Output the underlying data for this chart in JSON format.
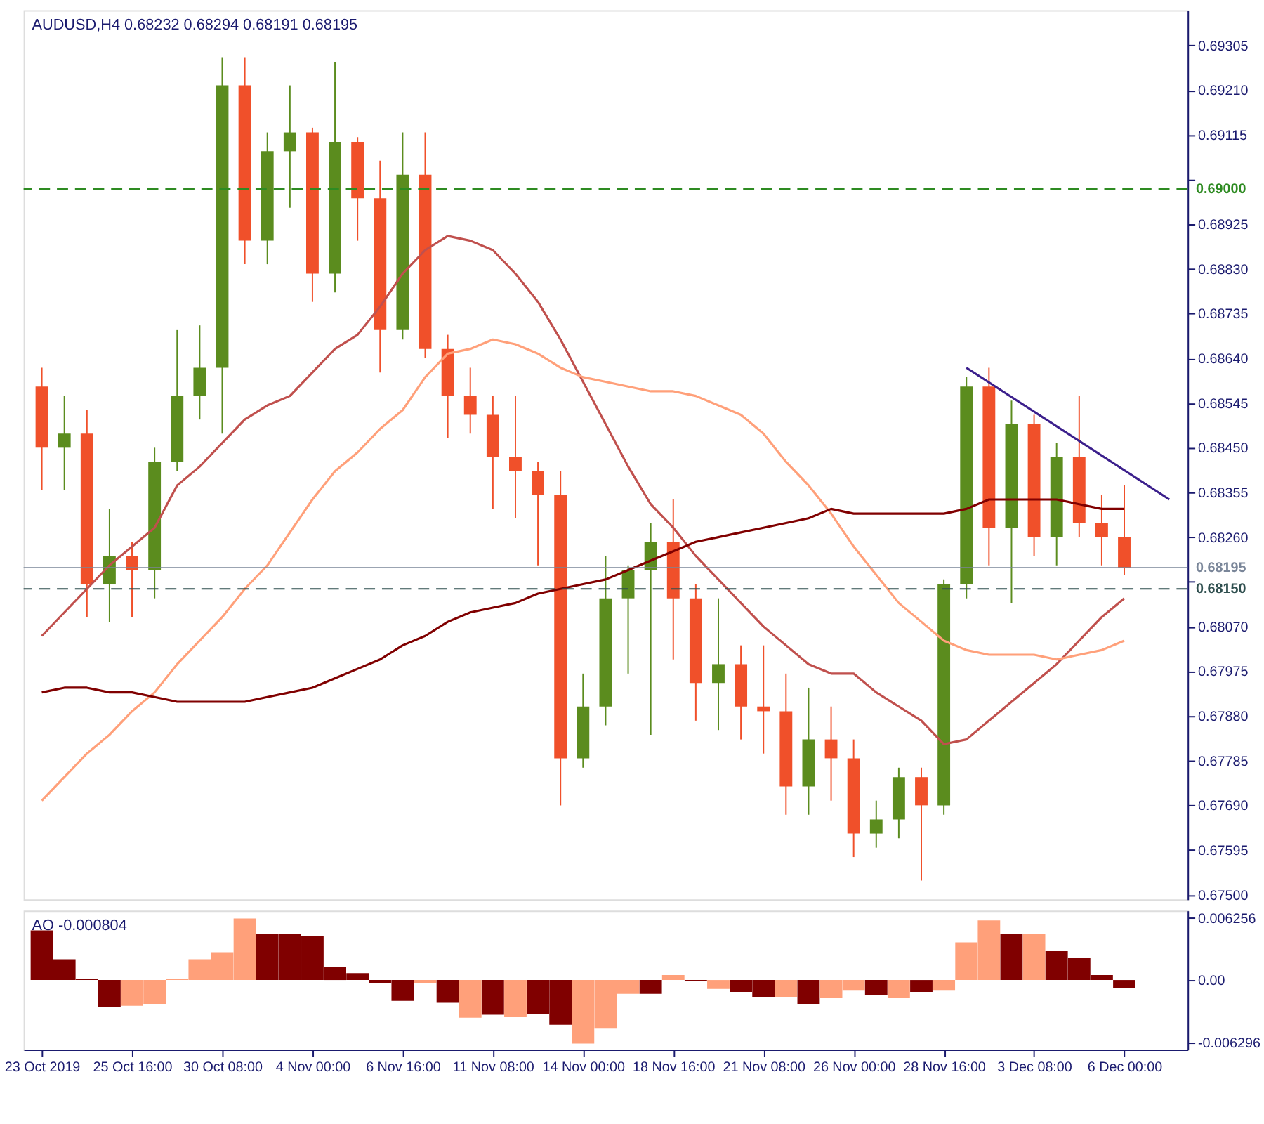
{
  "chart_data": [
    {
      "type": "candlestick",
      "title": "AUDUSD,H4  0.68232 0.68294 0.68191 0.68195",
      "tick_labels": "y",
      "grid": false,
      "categories": [
        null,
        null,
        null,
        null,
        null,
        null,
        null,
        null,
        null,
        null,
        null,
        null,
        null,
        null,
        null,
        null,
        null,
        null,
        null,
        null,
        null,
        null,
        null,
        null,
        null,
        null,
        null,
        null,
        null,
        null,
        null,
        null,
        null,
        null,
        null,
        null,
        null,
        null,
        null,
        null,
        null,
        null,
        null,
        null,
        null,
        null,
        null,
        null,
        null,
        null,
        null
      ],
      "ohlc": [
        [
          0.6858,
          0.6862,
          0.6836,
          0.6845
        ],
        [
          0.6845,
          0.6856,
          0.6836,
          0.6848
        ],
        [
          0.6848,
          0.6853,
          0.6809,
          0.6816
        ],
        [
          0.6816,
          0.6832,
          0.6808,
          0.6822
        ],
        [
          0.6822,
          0.6825,
          0.6809,
          0.6819
        ],
        [
          0.6819,
          0.6845,
          0.6813,
          0.6842
        ],
        [
          0.6842,
          0.687,
          0.684,
          0.6856
        ],
        [
          0.6856,
          0.6871,
          0.6851,
          0.6862
        ],
        [
          0.6862,
          0.6928,
          0.6848,
          0.6922
        ],
        [
          0.6922,
          0.6928,
          0.6884,
          0.6889
        ],
        [
          0.6889,
          0.6912,
          0.6884,
          0.6908
        ],
        [
          0.6908,
          0.6922,
          0.6896,
          0.6912
        ],
        [
          0.6912,
          0.6913,
          0.6876,
          0.6882
        ],
        [
          0.6882,
          0.6927,
          0.6878,
          0.691
        ],
        [
          0.691,
          0.6911,
          0.6889,
          0.6898
        ],
        [
          0.6898,
          0.6906,
          0.6861,
          0.687
        ],
        [
          0.687,
          0.6912,
          0.6868,
          0.6903
        ],
        [
          0.6903,
          0.6912,
          0.6864,
          0.6866
        ],
        [
          0.6866,
          0.6869,
          0.6847,
          0.6856
        ],
        [
          0.6856,
          0.6862,
          0.6848,
          0.6852
        ],
        [
          0.6852,
          0.6856,
          0.6832,
          0.6843
        ],
        [
          0.6843,
          0.6856,
          0.683,
          0.684
        ],
        [
          0.684,
          0.6842,
          0.682,
          0.6835
        ],
        [
          0.6835,
          0.684,
          0.6769,
          0.6779
        ],
        [
          0.6779,
          0.6797,
          0.6777,
          0.679
        ],
        [
          0.679,
          0.6822,
          0.6786,
          0.6813
        ],
        [
          0.6813,
          0.682,
          0.6797,
          0.6819
        ],
        [
          0.6819,
          0.6829,
          0.6784,
          0.6825
        ],
        [
          0.6825,
          0.6834,
          0.68,
          0.6813
        ],
        [
          0.6813,
          0.6816,
          0.6787,
          0.6795
        ],
        [
          0.6795,
          0.6813,
          0.6785,
          0.6799
        ],
        [
          0.6799,
          0.6803,
          0.6783,
          0.679
        ],
        [
          0.679,
          0.6803,
          0.678,
          0.6789
        ],
        [
          0.6789,
          0.6797,
          0.6767,
          0.6773
        ],
        [
          0.6773,
          0.6794,
          0.6767,
          0.6783
        ],
        [
          0.6783,
          0.679,
          0.677,
          0.6779
        ],
        [
          0.6779,
          0.6783,
          0.6758,
          0.6763
        ],
        [
          0.6763,
          0.677,
          0.676,
          0.6766
        ],
        [
          0.6766,
          0.6777,
          0.6762,
          0.6775
        ],
        [
          0.6775,
          0.6777,
          0.6753,
          0.6769
        ],
        [
          0.6769,
          0.6817,
          0.6767,
          0.6816
        ],
        [
          0.6816,
          0.686,
          0.6813,
          0.6858
        ],
        [
          0.6858,
          0.6862,
          0.682,
          0.6828
        ],
        [
          0.6828,
          0.6855,
          0.6812,
          0.685
        ],
        [
          0.685,
          0.6852,
          0.6822,
          0.6826
        ],
        [
          0.6826,
          0.6846,
          0.682,
          0.6843
        ],
        [
          0.6843,
          0.6856,
          0.6826,
          0.6829
        ],
        [
          0.6829,
          0.6835,
          0.682,
          0.6826
        ],
        [
          0.6826,
          0.6837,
          0.6818,
          0.68195
        ],
        null,
        null
      ],
      "colors": [
        "#f0502a",
        "#5b8c1e",
        "#f0502a",
        "#5b8c1e",
        "#f0502a",
        "#5b8c1e",
        "#5b8c1e",
        "#5b8c1e",
        "#5b8c1e",
        "#f0502a",
        "#5b8c1e",
        "#5b8c1e",
        "#f0502a",
        "#5b8c1e",
        "#f0502a",
        "#f0502a",
        "#5b8c1e",
        "#f0502a",
        "#f0502a",
        "#f0502a",
        "#f0502a",
        "#f0502a",
        "#f0502a",
        "#f0502a",
        "#5b8c1e",
        "#5b8c1e",
        "#5b8c1e",
        "#5b8c1e",
        "#f0502a",
        "#f0502a",
        "#5b8c1e",
        "#f0502a",
        "#f0502a",
        "#f0502a",
        "#5b8c1e",
        "#f0502a",
        "#f0502a",
        "#5b8c1e",
        "#5b8c1e",
        "#f0502a",
        "#5b8c1e",
        "#5b8c1e",
        "#f0502a",
        "#5b8c1e",
        "#f0502a",
        "#5b8c1e",
        "#f0502a",
        "#f0502a",
        "#f0502a",
        null,
        null
      ],
      "series": [
        {
          "type": "line",
          "color": "#c0504d",
          "values": [
            0.6805,
            0.681,
            0.6815,
            0.682,
            0.6824,
            0.6828,
            0.6837,
            0.6841,
            0.6846,
            0.6851,
            0.6854,
            0.6856,
            0.6861,
            0.6866,
            0.6869,
            0.6875,
            0.6882,
            0.6887,
            0.689,
            0.6889,
            0.6887,
            0.6882,
            0.6876,
            0.6868,
            0.6859,
            0.685,
            0.6841,
            0.6833,
            0.6828,
            0.6822,
            0.6817,
            0.6812,
            0.6807,
            0.6803,
            0.6799,
            0.6797,
            0.6797,
            0.6793,
            0.679,
            0.6787,
            0.6782,
            0.6783,
            0.6787,
            0.6791,
            0.6795,
            0.6799,
            0.6804,
            0.6809,
            0.6813,
            null,
            null
          ]
        },
        {
          "type": "line",
          "color": "#ffa07a",
          "values": [
            0.677,
            0.6775,
            0.678,
            0.6784,
            0.6789,
            0.6793,
            0.6799,
            0.6804,
            0.6809,
            0.6815,
            0.682,
            0.6827,
            0.6834,
            0.684,
            0.6844,
            0.6849,
            0.6853,
            0.686,
            0.6865,
            0.6866,
            0.6868,
            0.6867,
            0.6865,
            0.6862,
            0.686,
            0.6859,
            0.6858,
            0.6857,
            0.6857,
            0.6856,
            0.6854,
            0.6852,
            0.6848,
            0.6842,
            0.6837,
            0.6831,
            0.6824,
            0.6818,
            0.6812,
            0.6808,
            0.6804,
            0.6802,
            0.6801,
            0.6801,
            0.6801,
            0.68,
            0.6801,
            0.6802,
            0.6804,
            null,
            null
          ]
        },
        {
          "type": "line",
          "color": "#800000",
          "values": [
            0.6793,
            0.6794,
            0.6794,
            0.6793,
            0.6793,
            0.6792,
            0.6791,
            0.6791,
            0.6791,
            0.6791,
            0.6792,
            0.6793,
            0.6794,
            0.6796,
            0.6798,
            0.68,
            0.6803,
            0.6805,
            0.6808,
            0.681,
            0.6811,
            0.6812,
            0.6814,
            0.6815,
            0.6816,
            0.6817,
            0.6819,
            0.6821,
            0.6823,
            0.6825,
            0.6826,
            0.6827,
            0.6828,
            0.6829,
            0.683,
            0.6832,
            0.6831,
            0.6831,
            0.6831,
            0.6831,
            0.6831,
            0.6832,
            0.6834,
            0.6834,
            0.6834,
            0.6834,
            0.6833,
            0.6832,
            0.6832,
            null,
            null
          ]
        },
        {
          "type": "line",
          "color": "#3b1f8c",
          "values": [
            null,
            null,
            null,
            null,
            null,
            null,
            null,
            null,
            null,
            null,
            null,
            null,
            null,
            null,
            null,
            null,
            null,
            null,
            null,
            null,
            null,
            null,
            null,
            null,
            null,
            null,
            null,
            null,
            null,
            null,
            null,
            null,
            null,
            null,
            null,
            null,
            null,
            null,
            null,
            null,
            null,
            0.6862,
            null,
            null,
            null,
            null,
            null,
            null,
            null,
            null,
            0.6834
          ]
        }
      ],
      "ref_lines": [
        {
          "axis": "y",
          "value": 0.69,
          "label": "0.69000",
          "color": "#2e8b22",
          "line_style": "dashed"
        },
        {
          "axis": "y",
          "value": 0.68195,
          "label": "0.68195",
          "color": "#7a8699",
          "line_style": "solid"
        },
        {
          "axis": "y",
          "value": 0.6815,
          "label": "0.68150",
          "color": "#2f4f4f",
          "line_style": "dashed"
        }
      ],
      "ylim": [
        0.6749,
        0.6938
      ],
      "yticks": [
        {
          "value": 0.69305,
          "label": "0.69305"
        },
        {
          "value": 0.6921,
          "label": "0.69210"
        },
        {
          "value": 0.69115,
          "label": "0.69115"
        },
        {
          "value": 0.6902,
          "label": null
        },
        {
          "value": 0.68925,
          "label": "0.68925"
        },
        {
          "value": 0.6883,
          "label": "0.68830"
        },
        {
          "value": 0.68735,
          "label": "0.68735"
        },
        {
          "value": 0.6864,
          "label": "0.68640"
        },
        {
          "value": 0.68545,
          "label": "0.68545"
        },
        {
          "value": 0.6845,
          "label": "0.68450"
        },
        {
          "value": 0.68355,
          "label": "0.68355"
        },
        {
          "value": 0.6826,
          "label": "0.68260"
        },
        {
          "value": 0.68165,
          "label": null
        },
        {
          "value": 0.6807,
          "label": "0.68070"
        },
        {
          "value": 0.67975,
          "label": "0.67975"
        },
        {
          "value": 0.6788,
          "label": "0.67880"
        },
        {
          "value": 0.67785,
          "label": "0.67785"
        },
        {
          "value": 0.6769,
          "label": "0.67690"
        },
        {
          "value": 0.67595,
          "label": "0.67595"
        },
        {
          "value": 0.675,
          "label": "0.67500"
        }
      ]
    },
    {
      "type": "bar",
      "title": "AO -0.000804",
      "grid": false,
      "categories": [
        "23 Oct 2019",
        null,
        null,
        null,
        "25 Oct 16:00",
        null,
        null,
        null,
        "30 Oct 08:00",
        null,
        null,
        null,
        "4 Nov 00:00",
        null,
        null,
        null,
        "6 Nov 16:00",
        null,
        null,
        null,
        "11 Nov 08:00",
        null,
        null,
        null,
        "14 Nov 00:00",
        null,
        null,
        null,
        "18 Nov 16:00",
        null,
        null,
        null,
        "21 Nov 08:00",
        null,
        null,
        null,
        "26 Nov 00:00",
        null,
        null,
        null,
        "28 Nov 16:00",
        null,
        null,
        null,
        "3 Dec 08:00",
        null,
        null,
        null,
        "6 Dec 00:00",
        null,
        null
      ],
      "values": [
        0.005,
        0.0021,
        0.0001,
        -0.0027,
        -0.0026,
        -0.0024,
        0.0001,
        0.0021,
        0.0028,
        0.0062,
        0.0046,
        0.0046,
        0.0044,
        0.0013,
        0.0007,
        -0.0003,
        -0.0021,
        -0.0003,
        -0.0023,
        -0.0038,
        -0.0035,
        -0.0037,
        -0.0034,
        -0.0045,
        -0.0064,
        -0.0049,
        -0.0014,
        -0.0014,
        0.0005,
        -0.0001,
        -0.0009,
        -0.0012,
        -0.0017,
        -0.0017,
        -0.0024,
        -0.0018,
        -0.001,
        -0.0015,
        -0.0018,
        -0.0012,
        -0.001,
        0.0038,
        0.006,
        0.0046,
        0.0046,
        0.0029,
        0.0022,
        0.0005,
        -0.000804,
        null,
        null
      ],
      "colors": [
        "#800000",
        "#800000",
        "#800000",
        "#800000",
        "#ffa07a",
        "#ffa07a",
        "#ffa07a",
        "#ffa07a",
        "#ffa07a",
        "#ffa07a",
        "#800000",
        "#800000",
        "#800000",
        "#800000",
        "#800000",
        "#800000",
        "#800000",
        "#ffa07a",
        "#800000",
        "#ffa07a",
        "#800000",
        "#ffa07a",
        "#800000",
        "#800000",
        "#ffa07a",
        "#ffa07a",
        "#ffa07a",
        "#800000",
        "#ffa07a",
        "#800000",
        "#ffa07a",
        "#800000",
        "#800000",
        "#ffa07a",
        "#800000",
        "#ffa07a",
        "#ffa07a",
        "#800000",
        "#ffa07a",
        "#800000",
        "#ffa07a",
        "#ffa07a",
        "#ffa07a",
        "#800000",
        "#ffa07a",
        "#800000",
        "#800000",
        "#800000",
        "#800000",
        null,
        null
      ],
      "ylim": [
        -0.007,
        0.007
      ],
      "yticks": [
        0.006256,
        {
          "value": 0,
          "label": "0.00"
        },
        -0.006296
      ]
    }
  ]
}
